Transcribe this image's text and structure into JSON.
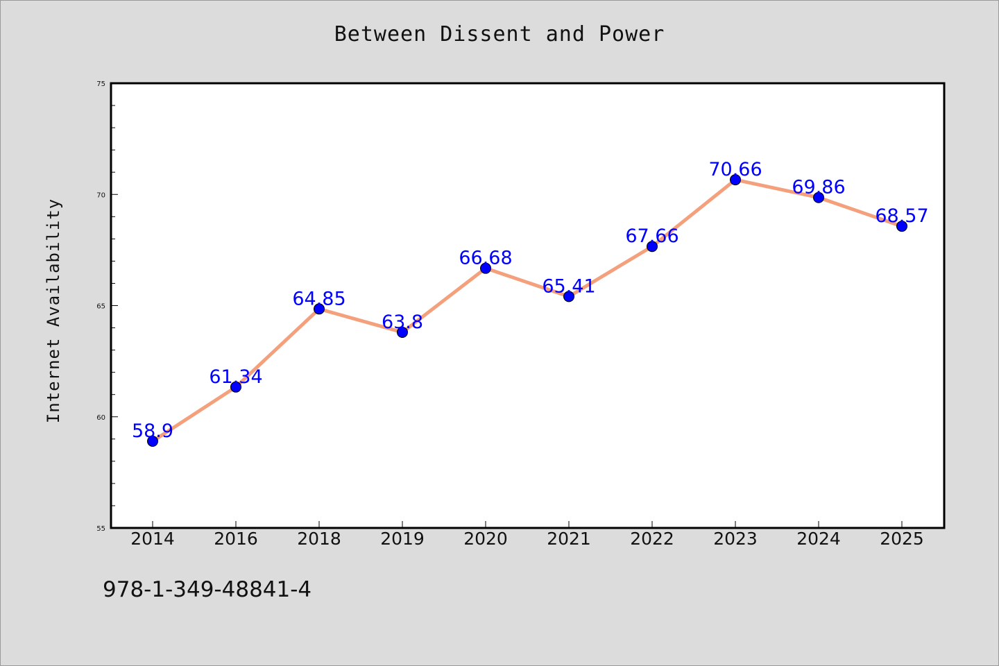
{
  "chart_data": {
    "type": "line",
    "title": "Between Dissent and Power",
    "xlabel": "",
    "ylabel": "Internet Availability",
    "categories": [
      "2014",
      "2016",
      "2018",
      "2019",
      "2020",
      "2021",
      "2022",
      "2023",
      "2024",
      "2025"
    ],
    "series": [
      {
        "values": [
          58.9,
          61.34,
          64.85,
          63.8,
          66.68,
          65.41,
          67.66,
          70.66,
          69.86,
          68.57
        ],
        "labels": [
          "58.9",
          "61.34",
          "64.85",
          "63.8",
          "66.68",
          "65.41",
          "67.66",
          "70.66",
          "69.86",
          "68.57"
        ]
      }
    ],
    "ylim": [
      55,
      75
    ],
    "yticks": [
      55,
      60,
      65,
      70,
      75
    ],
    "grid": false,
    "line_color": "#f4a07c",
    "marker_color": "#0000ff",
    "label_color": "#0000ff"
  },
  "footer": {
    "isbn": "978-1-349-48841-4"
  }
}
